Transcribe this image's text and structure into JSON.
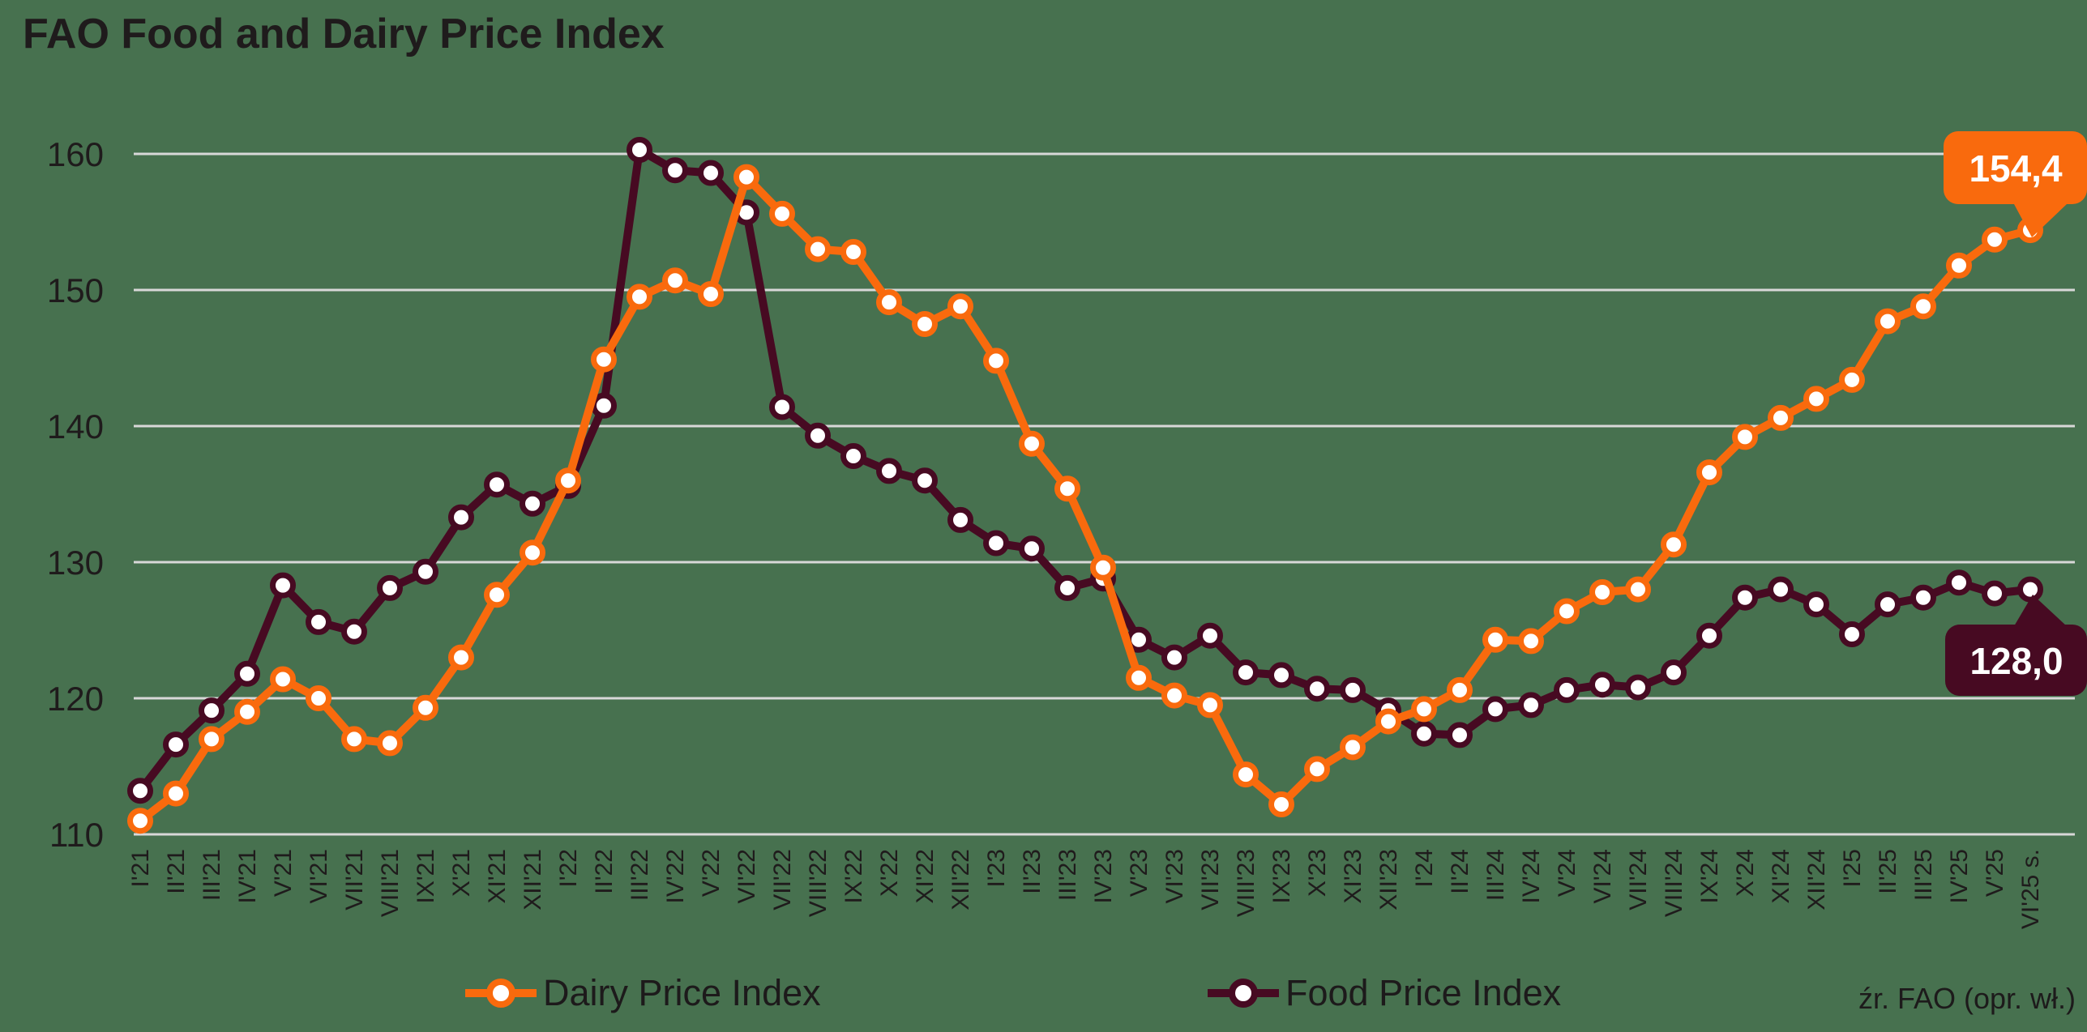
{
  "title": "FAO Food and Dairy Price Index",
  "source": "źr. FAO (opr. wł.)",
  "colors": {
    "background": "#47714F",
    "gridline": "#D8D8D8",
    "dairy": "#F96A0D",
    "food": "#470A22",
    "text": "#1F1B1C",
    "callout_text": "#FFFFFF"
  },
  "legend": [
    {
      "label": "Dairy Price Index",
      "color": "#F96A0D"
    },
    {
      "label": "Food Price Index",
      "color": "#470A22"
    }
  ],
  "callouts": {
    "dairy": "154,4",
    "food": "128,0"
  },
  "chart_data": {
    "type": "line",
    "title": "FAO Food and Dairy Price Index",
    "xlabel": "",
    "ylabel": "",
    "ylim": [
      110,
      160
    ],
    "y_ticks": [
      160,
      150,
      140,
      130,
      120,
      110
    ],
    "grid": "horizontal",
    "legend_position": "bottom",
    "x_labels": [
      "I'21",
      "II'21",
      "III'21",
      "IV'21",
      "V'21",
      "VI'21",
      "VII'21",
      "VIII'21",
      "IX'21",
      "X'21",
      "XI'21",
      "XII'21",
      "I'22",
      "II'22",
      "III'22",
      "IV'22",
      "V'22",
      "VI'22",
      "VII'22",
      "VIII'22",
      "IX'22",
      "X'22",
      "XI'22",
      "XII'22",
      "I'23",
      "II'23",
      "III'23",
      "IV'23",
      "V'23",
      "VI'23",
      "VII'23",
      "VIII'23",
      "IX'23",
      "X'23",
      "XI'23",
      "XII'23",
      "I'24",
      "II'24",
      "III'24",
      "IV'24",
      "V'24",
      "VI'24",
      "VII'24",
      "VIII'24",
      "IX'24",
      "X'24",
      "XI'24",
      "XII'24",
      "I'25",
      "II'25",
      "III'25",
      "IV'25",
      "V'25",
      "VI'25 s."
    ],
    "series": [
      {
        "name": "Dairy Price Index",
        "color": "#F96A0D",
        "values": [
          111.0,
          113.0,
          117.0,
          119.0,
          121.4,
          120.0,
          117.0,
          116.7,
          119.3,
          123.0,
          127.6,
          130.7,
          136.0,
          144.9,
          149.5,
          150.7,
          149.7,
          158.3,
          155.6,
          153.0,
          152.8,
          149.1,
          147.5,
          148.8,
          144.8,
          138.7,
          135.4,
          129.6,
          121.5,
          120.2,
          119.5,
          114.4,
          112.2,
          114.8,
          116.4,
          118.3,
          119.2,
          120.6,
          124.3,
          124.2,
          126.4,
          127.8,
          128.0,
          131.3,
          136.6,
          139.2,
          140.6,
          142.0,
          143.4,
          147.7,
          148.8,
          151.8,
          153.7,
          154.4
        ],
        "last_value_label": "154,4"
      },
      {
        "name": "Food Price Index",
        "color": "#470A22",
        "values": [
          113.2,
          116.6,
          119.1,
          121.8,
          128.3,
          125.6,
          124.9,
          128.1,
          129.3,
          133.3,
          135.7,
          134.3,
          135.6,
          141.5,
          160.3,
          158.8,
          158.6,
          155.7,
          141.4,
          139.3,
          137.8,
          136.7,
          136.0,
          133.1,
          131.4,
          131.0,
          128.1,
          128.8,
          124.3,
          123.0,
          124.6,
          121.9,
          121.7,
          120.7,
          120.6,
          119.1,
          117.4,
          117.3,
          119.2,
          119.5,
          120.6,
          121.0,
          120.8,
          121.9,
          124.6,
          127.4,
          128.0,
          126.9,
          124.7,
          126.9,
          127.4,
          128.5,
          127.7,
          128.0
        ],
        "last_value_label": "128,0"
      }
    ]
  }
}
